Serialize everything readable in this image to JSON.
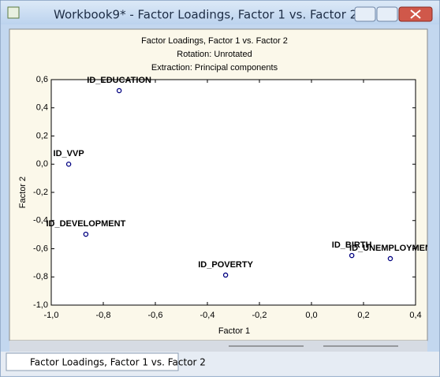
{
  "window": {
    "title": "Workbook9* - Factor Loadings, Factor 1 vs. Factor 2",
    "tab": "Factor Loadings, Factor 1 vs. Factor 2"
  },
  "chart_data": {
    "type": "scatter",
    "title": "Factor Loadings, Factor 1 vs. Factor 2",
    "subtitles": [
      "Rotation: Unrotated",
      "Extraction: Principal components"
    ],
    "xlabel": "Factor 1",
    "ylabel": "Factor 2",
    "point_labels": [
      "ID_EDUCATION",
      "ID_VVP",
      "ID_DEVELOPMENT",
      "ID_POVERTY",
      "ID_BIRTH",
      "ID_UNEMPLOYMEN"
    ],
    "x": [
      -0.739,
      -0.933,
      -0.867,
      -0.33,
      0.155,
      0.303
    ],
    "values": [
      0.522,
      0.0,
      -0.497,
      -0.787,
      -0.648,
      -0.67
    ],
    "color": "#000080",
    "xlim": [
      -1.0,
      0.4
    ],
    "xticks": [
      {
        "value": -1.0,
        "label": "-1,0"
      },
      {
        "value": -0.8,
        "label": "-0,8"
      },
      {
        "value": -0.6,
        "label": "-0,6"
      },
      {
        "value": -0.4,
        "label": "-0,4"
      },
      {
        "value": -0.2,
        "label": "-0,2"
      },
      {
        "value": 0,
        "label": "0,0"
      },
      {
        "value": 0.2,
        "label": "0,2"
      },
      {
        "value": 0.4,
        "label": "0,4"
      }
    ],
    "ylim": [
      -1.0,
      0.6
    ],
    "yticks": [
      {
        "value": 0.6,
        "label": "0,6"
      },
      {
        "value": 0.4,
        "label": "0,4"
      },
      {
        "value": 0.2,
        "label": "0,2"
      },
      {
        "value": 0,
        "label": "0,0"
      },
      {
        "value": -0.2,
        "label": "-0,2"
      },
      {
        "value": -0.4,
        "label": "-0,4"
      },
      {
        "value": -0.6,
        "label": "-0,6"
      },
      {
        "value": -0.8,
        "label": "-0,8"
      },
      {
        "value": -1.0,
        "label": "-1,0"
      }
    ],
    "grid": false
  }
}
